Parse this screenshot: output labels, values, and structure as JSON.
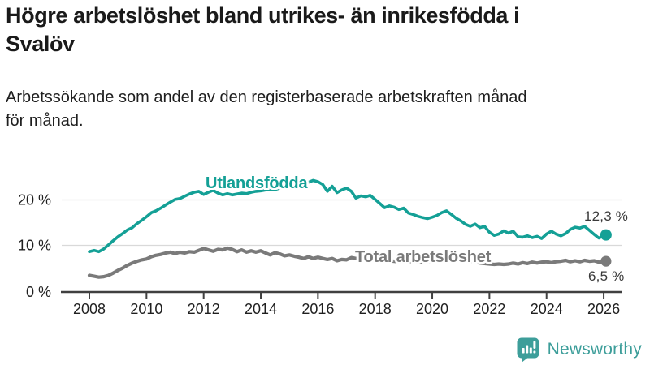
{
  "header": {
    "title": "Högre arbetslöshet bland utrikes- än inrikesfödda i\nSvalöv",
    "subtitle": "Arbetssökande som andel av den registerbaserade arbetskraften månad\nför månad."
  },
  "chart_data": {
    "type": "line",
    "title": "Högre arbetslöshet bland utrikes- än inrikesfödda i Svalöv",
    "xlabel": "",
    "ylabel": "",
    "unit": "%",
    "grid": true,
    "grid_color": "#d9d9d9",
    "axis_color": "#404040",
    "tick_text_color": "#1f1f1f",
    "annotation_text_color": "#3a3a3a",
    "legend_position": "inline-labels-on-lines",
    "x_axis": {
      "ticks": [
        2008,
        2010,
        2012,
        2014,
        2016,
        2018,
        2020,
        2022,
        2024,
        2026
      ],
      "range": [
        2007,
        2026.6
      ]
    },
    "y_axis": {
      "ticks": [
        0,
        10,
        20
      ],
      "tick_labels": [
        "0 %",
        "10 %",
        "20 %"
      ],
      "range": [
        0,
        27
      ]
    },
    "x": [
      2008,
      2008.17,
      2008.33,
      2008.5,
      2008.67,
      2008.83,
      2009,
      2009.17,
      2009.33,
      2009.5,
      2009.67,
      2009.83,
      2010,
      2010.17,
      2010.33,
      2010.5,
      2010.67,
      2010.83,
      2011,
      2011.17,
      2011.33,
      2011.5,
      2011.67,
      2011.83,
      2012,
      2012.17,
      2012.33,
      2012.5,
      2012.67,
      2012.83,
      2013,
      2013.17,
      2013.33,
      2013.5,
      2013.67,
      2013.83,
      2014,
      2014.17,
      2014.33,
      2014.5,
      2014.67,
      2014.83,
      2015,
      2015.17,
      2015.33,
      2015.5,
      2015.67,
      2015.83,
      2016,
      2016.17,
      2016.33,
      2016.5,
      2016.67,
      2016.83,
      2017,
      2017.17,
      2017.33,
      2017.5,
      2017.67,
      2017.83,
      2018,
      2018.17,
      2018.33,
      2018.5,
      2018.67,
      2018.83,
      2019,
      2019.17,
      2019.33,
      2019.5,
      2019.67,
      2019.83,
      2020,
      2020.17,
      2020.33,
      2020.5,
      2020.67,
      2020.83,
      2021,
      2021.17,
      2021.33,
      2021.5,
      2021.67,
      2021.83,
      2022,
      2022.17,
      2022.33,
      2022.5,
      2022.67,
      2022.83,
      2023,
      2023.17,
      2023.33,
      2023.5,
      2023.67,
      2023.83,
      2024,
      2024.17,
      2024.33,
      2024.5,
      2024.67,
      2024.83,
      2025,
      2025.17,
      2025.33,
      2025.5,
      2025.67,
      2025.83,
      2026,
      2026.08
    ],
    "series": [
      {
        "name": "Utlandsfödda",
        "color": "#14a096",
        "end_label": "12,3 %",
        "end_value": 12.3,
        "values": [
          8.6,
          8.9,
          8.6,
          9.2,
          10.1,
          11.0,
          11.9,
          12.6,
          13.4,
          13.9,
          14.8,
          15.5,
          16.3,
          17.2,
          17.6,
          18.2,
          18.9,
          19.5,
          20.1,
          20.3,
          20.8,
          21.3,
          21.7,
          21.9,
          21.2,
          21.7,
          22.1,
          21.5,
          21.1,
          21.4,
          21.1,
          21.3,
          21.5,
          21.4,
          21.7,
          21.9,
          22.0,
          22.2,
          22.4,
          22.3,
          22.6,
          22.8,
          23.0,
          23.2,
          23.4,
          23.6,
          23.9,
          24.3,
          24.0,
          23.4,
          21.9,
          23.0,
          21.6,
          22.2,
          22.6,
          21.9,
          20.4,
          20.9,
          20.7,
          21.0,
          20.1,
          19.2,
          18.3,
          18.7,
          18.4,
          17.9,
          18.2,
          17.1,
          16.8,
          16.4,
          16.1,
          15.9,
          16.2,
          16.6,
          17.2,
          17.6,
          16.8,
          16.0,
          15.4,
          14.6,
          14.2,
          14.7,
          13.9,
          14.2,
          12.9,
          12.2,
          12.5,
          13.2,
          12.7,
          13.1,
          11.9,
          11.8,
          12.1,
          11.7,
          12.0,
          11.5,
          12.5,
          13.1,
          12.5,
          12.1,
          12.6,
          13.5,
          14.0,
          13.8,
          14.2,
          13.3,
          12.4,
          11.6,
          12.1,
          12.3
        ]
      },
      {
        "name": "Total arbetslöshet",
        "color": "#7a7a7a",
        "end_label": "6,5 %",
        "end_value": 6.5,
        "values": [
          3.4,
          3.2,
          3.0,
          3.1,
          3.4,
          3.9,
          4.5,
          5.0,
          5.6,
          6.1,
          6.5,
          6.8,
          7.0,
          7.5,
          7.8,
          8.0,
          8.3,
          8.5,
          8.2,
          8.5,
          8.3,
          8.6,
          8.5,
          8.9,
          9.3,
          9.0,
          8.7,
          9.1,
          9.0,
          9.4,
          9.1,
          8.6,
          9.0,
          8.5,
          8.8,
          8.5,
          8.8,
          8.3,
          7.9,
          8.4,
          8.1,
          7.7,
          7.9,
          7.6,
          7.4,
          7.1,
          7.5,
          7.1,
          7.4,
          7.1,
          6.9,
          7.1,
          6.6,
          6.9,
          6.8,
          7.3,
          7.1,
          7.2,
          7.0,
          6.9,
          6.9,
          6.8,
          6.7,
          6.6,
          6.5,
          6.4,
          6.4,
          6.3,
          6.2,
          6.2,
          6.3,
          6.4,
          6.6,
          6.9,
          7.2,
          7.1,
          6.9,
          6.8,
          6.7,
          6.5,
          6.4,
          6.3,
          6.1,
          6.0,
          5.9,
          5.8,
          5.9,
          5.8,
          5.9,
          6.1,
          5.9,
          6.2,
          6.0,
          6.3,
          6.1,
          6.3,
          6.4,
          6.2,
          6.4,
          6.5,
          6.7,
          6.4,
          6.6,
          6.4,
          6.7,
          6.5,
          6.6,
          6.3,
          6.4,
          6.5
        ]
      }
    ]
  },
  "footer": {
    "brand": "Newsworthy",
    "brand_color": "#3d9e9a",
    "logo_icon": "bar-chart-speech-bubble"
  }
}
